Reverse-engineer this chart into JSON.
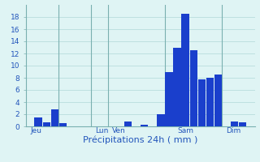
{
  "xlabel": "Précipitations 24h ( mm )",
  "background_color": "#dff4f4",
  "bar_color": "#1a3fcc",
  "grid_color": "#b0d8d8",
  "text_color": "#2255bb",
  "spine_color": "#7ab0b0",
  "ylim": [
    0,
    20
  ],
  "yticks": [
    0,
    2,
    4,
    6,
    8,
    10,
    12,
    14,
    16,
    18
  ],
  "bar_values": [
    0,
    1.5,
    0.7,
    2.8,
    0.5,
    0,
    0,
    0,
    0,
    0,
    0,
    0,
    0.8,
    0,
    0.3,
    0,
    2.0,
    9.0,
    13.0,
    18.5,
    12.5,
    7.8,
    8.0,
    8.5,
    0,
    0.8,
    0.7,
    0
  ],
  "day_labels": [
    "Jeu",
    "Lun",
    "Ven",
    "Sam",
    "Dim"
  ],
  "day_tick_positions": [
    0.5,
    8.5,
    10.5,
    18.5,
    24.5
  ],
  "vline_positions": [
    4,
    8,
    10,
    17,
    24
  ],
  "n_bars": 28,
  "tick_fontsize": 6.5,
  "label_fontsize": 8,
  "figsize": [
    3.2,
    2.0
  ],
  "dpi": 100
}
